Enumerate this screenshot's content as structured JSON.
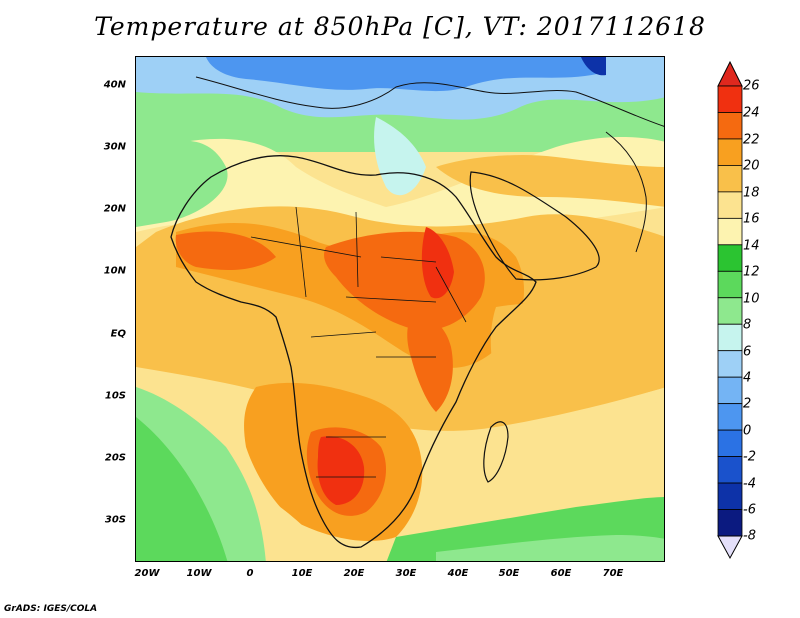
{
  "title": "Temperature at 850hPa [C], VT: 2017112618",
  "credit": "GrADS: IGES/COLA",
  "lat_labels": [
    "40N",
    "30N",
    "20N",
    "10N",
    "EQ",
    "10S",
    "20S",
    "30S"
  ],
  "lon_labels": [
    "20W",
    "10W",
    "0",
    "10E",
    "20E",
    "30E",
    "40E",
    "50E",
    "60E",
    "70E"
  ],
  "colorbar": {
    "labels": [
      "26",
      "24",
      "22",
      "20",
      "18",
      "16",
      "14",
      "12",
      "10",
      "8",
      "6",
      "4",
      "2",
      "0",
      "-2",
      "-4",
      "-6",
      "-8"
    ],
    "colors": [
      "#f03010",
      "#f56a10",
      "#f8a020",
      "#f9c04a",
      "#fce390",
      "#fdf3b0",
      "#2bc431",
      "#5cd95c",
      "#8ee88e",
      "#c6f4ee",
      "#9ed0f6",
      "#74b4f4",
      "#4d96f0",
      "#2b72e4",
      "#1a52cc",
      "#0d32a8",
      "#0b1a80"
    ],
    "top_arrow_color": "#e0281e",
    "bottom_arrow_color": "#e4e0fa"
  },
  "map": {
    "region": "Africa and surrounding seas",
    "lon_range": [
      -22,
      80
    ],
    "lat_range": [
      -36,
      45
    ]
  }
}
